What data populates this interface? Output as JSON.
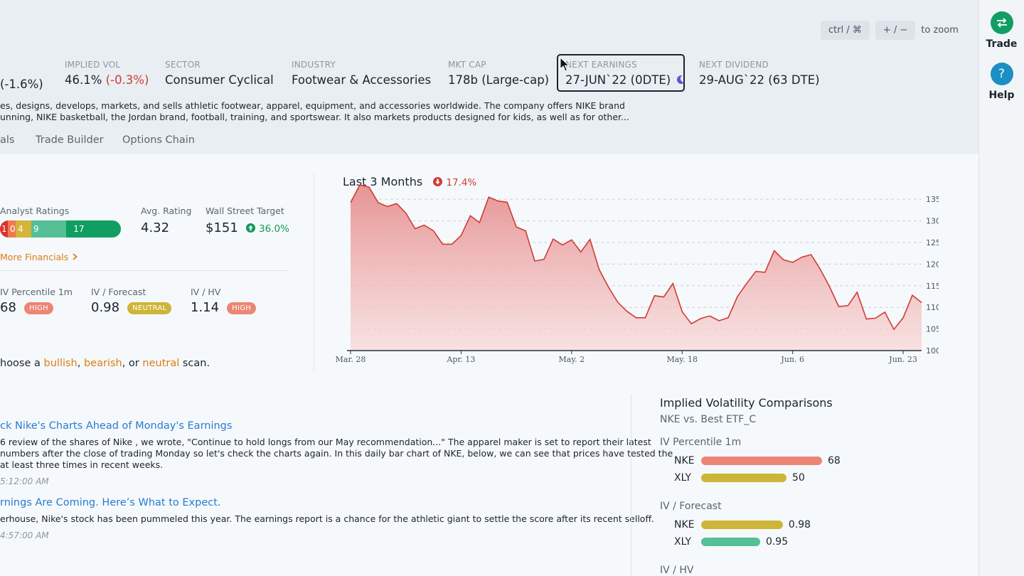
{
  "zoom": {
    "key1": "ctrl / ⌘",
    "key2": "+ / −",
    "text": "to zoom"
  },
  "stats": {
    "change": "(-1.6%)",
    "implied_vol": {
      "label": "IMPLIED VOL",
      "value": "46.1%",
      "change": "(-0.3%)"
    },
    "sector": {
      "label": "SECTOR",
      "value": "Consumer Cyclical"
    },
    "industry": {
      "label": "INDUSTRY",
      "value": "Footwear & Accessories"
    },
    "mkt_cap": {
      "label": "MKT CAP",
      "value": "178b (Large-cap)"
    },
    "next_earnings": {
      "label": "NEXT EARNINGS",
      "value": "27-JUN`22 (0DTE)"
    },
    "next_dividend": {
      "label": "NEXT DIVIDEND",
      "value": "29-AUG`22 (63 DTE)"
    }
  },
  "description": {
    "line1": "es, designs, develops, markets, and sells athletic footwear, apparel, equipment, and accessories worldwide. The company offers NIKE brand",
    "line2": "unning, NIKE basketball, the Jordan brand, football, training, and sportswear. It also markets products designed for kids, as well as for other..."
  },
  "tabs": [
    "als",
    "Trade Builder",
    "Options Chain"
  ],
  "analyst": {
    "label": "Analyst Ratings",
    "segments": [
      {
        "value": "1",
        "color": "#d8322f"
      },
      {
        "value": "0",
        "color": "#ee7b4d"
      },
      {
        "value": "4",
        "color": "#d4b43a"
      },
      {
        "value": "9",
        "color": "#55c096"
      },
      {
        "value": "17",
        "color": "#119e62"
      }
    ],
    "avg_label": "Avg. Rating",
    "avg_value": "4.32",
    "target_label": "Wall Street Target",
    "target_value": "$151",
    "target_change": "36.0%",
    "more_link": "More Financials"
  },
  "iv_stats": {
    "percentile": {
      "label": "IV Percentile 1m",
      "value": "68",
      "badge": "HIGH"
    },
    "forecast": {
      "label": "IV / Forecast",
      "value": "0.98",
      "badge": "NEUTRAL"
    },
    "hv": {
      "label": "IV / HV",
      "value": "1.14",
      "badge": "HIGH"
    }
  },
  "scan": {
    "prefix": "hoose a ",
    "bullish": "bullish",
    "sep1": ", ",
    "bearish": "bearish",
    "sep2": ", or ",
    "neutral": "neutral",
    "suffix": " scan."
  },
  "news": [
    {
      "title": "ck Nike's Charts Ahead of Monday's Earnings",
      "line1": "6 review of the shares of Nike , we wrote, \"Continue to hold longs from our May recommendation...\" The apparel maker is set to report their latest",
      "line2": "numbers after the close of trading Monday so let's check the charts again. In this daily bar chart of NKE, below, we can see that prices have tested the",
      "line3": "at least three times in recent weeks.",
      "time": "5:12:00 AM"
    },
    {
      "title": "rnings Are Coming. Here’s What to Expect.",
      "line1": "erhouse, Nike's stock has been pummeled this year. The earnings report is a chance for the athletic giant to settle the score after its recent selloff.",
      "time": "4:57:00 AM"
    }
  ],
  "chart_header": {
    "title": "Last 3 Months",
    "change": "17.4%"
  },
  "chart_data": {
    "type": "area",
    "title": "Last 3 Months",
    "x_tick_labels": [
      "Mar. 28",
      "Apr. 13",
      "May. 2",
      "May. 18",
      "Jun. 6",
      "Jun. 23"
    ],
    "y_ticks": [
      100,
      105,
      110,
      115,
      120,
      125,
      130,
      135
    ],
    "ylim": [
      100,
      137
    ],
    "grid": true,
    "color": "#d23b35",
    "values": [
      134.2,
      138.3,
      137.8,
      134.2,
      133.3,
      134,
      131.8,
      128.2,
      129,
      127.7,
      124.6,
      124.6,
      126.6,
      131.2,
      129.6,
      135.5,
      134.6,
      134.3,
      128.6,
      127.7,
      120.7,
      121.1,
      125.8,
      124.4,
      125.6,
      122.8,
      125.7,
      118.7,
      114.7,
      111.2,
      109.1,
      107.6,
      107.6,
      112.7,
      112.4,
      115.5,
      109,
      106.2,
      107.4,
      108,
      106.9,
      107.6,
      112.5,
      115.5,
      118.3,
      118.1,
      123.1,
      121,
      120.4,
      121.6,
      122.2,
      118.8,
      114.8,
      110.2,
      110.4,
      113.5,
      107.3,
      107.5,
      108.9,
      104.9,
      107.6,
      112.8,
      111.1
    ]
  },
  "iv_comparison": {
    "title": "Implied Volatility Comparisons",
    "subtitle": "NKE vs. Best ETF_C",
    "groups": [
      {
        "label": "IV Percentile 1m",
        "rows": [
          {
            "ticker": "NKE",
            "value": "68",
            "frac": 1.0,
            "color": "#ec8574"
          },
          {
            "ticker": "XLY",
            "value": "50",
            "frac": 0.706,
            "color": "#cdb538"
          }
        ]
      },
      {
        "label": "IV / Forecast",
        "rows": [
          {
            "ticker": "NKE",
            "value": "0.98",
            "frac": 0.676,
            "color": "#cdb538"
          },
          {
            "ticker": "XLY",
            "value": "0.95",
            "frac": 0.488,
            "color": "#55c096"
          }
        ]
      },
      {
        "label": "IV / HV",
        "rows": []
      }
    ]
  },
  "sidebar": {
    "trade_label": "Trade",
    "help_label": "Help",
    "trade_color": "#119e62",
    "help_color": "#1b8fc2"
  }
}
